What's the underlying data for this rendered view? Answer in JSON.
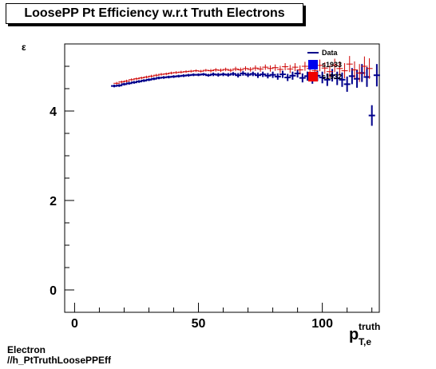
{
  "title": "LoosePP Pt Efficiency w.r.t Truth Electrons",
  "footer": {
    "line1": "Electron",
    "line2": "//h_PtTruthLoosePPEff"
  },
  "chart_data": {
    "type": "scatter",
    "title": "LoosePP Pt Efficiency w.r.t Truth Electrons",
    "ylabel": "ε",
    "xlabel_main": "p",
    "xlabel_sup": "truth",
    "xlabel_sub": "T,e",
    "xlim": [
      -4,
      123
    ],
    "ylim": [
      -0.5,
      5.5
    ],
    "xticks": [
      0,
      50,
      100
    ],
    "yticks": [
      0,
      2,
      4
    ],
    "grid": false,
    "legend_position": "top-right",
    "series": [
      {
        "name": "s1933",
        "color": "#00008b",
        "x": [
          16,
          18,
          20,
          22,
          24,
          26,
          28,
          30,
          32,
          34,
          36,
          38,
          40,
          42,
          44,
          46,
          48,
          50,
          52,
          54,
          56,
          58,
          60,
          62,
          64,
          66,
          68,
          70,
          72,
          74,
          76,
          78,
          80,
          82,
          84,
          86,
          88,
          90,
          92,
          94,
          96,
          98,
          100,
          102,
          104,
          106,
          108,
          110,
          112,
          114,
          116,
          118,
          120,
          122
        ],
        "y": [
          4.56,
          4.57,
          4.6,
          4.62,
          4.64,
          4.66,
          4.68,
          4.7,
          4.72,
          4.74,
          4.75,
          4.76,
          4.77,
          4.78,
          4.79,
          4.8,
          4.81,
          4.81,
          4.82,
          4.8,
          4.82,
          4.81,
          4.82,
          4.81,
          4.83,
          4.8,
          4.84,
          4.81,
          4.83,
          4.8,
          4.82,
          4.79,
          4.81,
          4.77,
          4.82,
          4.75,
          4.79,
          4.84,
          4.74,
          4.78,
          4.72,
          4.79,
          4.75,
          4.7,
          4.8,
          4.73,
          4.7,
          4.6,
          4.78,
          4.72,
          4.85,
          4.76,
          3.9,
          4.8
        ],
        "yerr": [
          0.03,
          0.03,
          0.03,
          0.03,
          0.03,
          0.03,
          0.03,
          0.03,
          0.03,
          0.03,
          0.03,
          0.03,
          0.03,
          0.03,
          0.03,
          0.03,
          0.03,
          0.03,
          0.03,
          0.03,
          0.04,
          0.04,
          0.04,
          0.04,
          0.04,
          0.05,
          0.05,
          0.05,
          0.05,
          0.06,
          0.06,
          0.06,
          0.07,
          0.07,
          0.08,
          0.08,
          0.09,
          0.09,
          0.1,
          0.1,
          0.11,
          0.12,
          0.13,
          0.14,
          0.14,
          0.15,
          0.16,
          0.17,
          0.18,
          0.2,
          0.2,
          0.22,
          0.23,
          0.25
        ]
      },
      {
        "name": "s1932",
        "color": "#cc0000",
        "x": [
          17,
          19,
          21,
          23,
          25,
          27,
          29,
          31,
          33,
          35,
          37,
          39,
          41,
          43,
          45,
          47,
          49,
          51,
          53,
          55,
          57,
          59,
          61,
          63,
          65,
          67,
          69,
          71,
          73,
          75,
          77,
          79,
          81,
          83,
          85,
          87,
          89,
          91,
          93,
          95,
          97,
          99,
          101,
          103,
          105,
          107,
          109,
          111,
          113,
          115,
          117,
          119
        ],
        "y": [
          4.62,
          4.65,
          4.67,
          4.7,
          4.72,
          4.74,
          4.76,
          4.78,
          4.8,
          4.82,
          4.83,
          4.85,
          4.86,
          4.87,
          4.88,
          4.89,
          4.9,
          4.89,
          4.91,
          4.9,
          4.92,
          4.91,
          4.93,
          4.91,
          4.94,
          4.92,
          4.95,
          4.93,
          4.96,
          4.94,
          4.98,
          4.95,
          4.97,
          4.93,
          4.99,
          4.94,
          4.98,
          4.92,
          5.0,
          4.95,
          4.9,
          5.02,
          4.96,
          4.88,
          5.02,
          4.95,
          4.9,
          5.05,
          4.92,
          4.85,
          5.0,
          4.95
        ],
        "yerr": [
          0.03,
          0.03,
          0.03,
          0.03,
          0.03,
          0.03,
          0.03,
          0.03,
          0.03,
          0.03,
          0.03,
          0.03,
          0.03,
          0.03,
          0.03,
          0.03,
          0.03,
          0.03,
          0.03,
          0.04,
          0.04,
          0.04,
          0.04,
          0.04,
          0.05,
          0.05,
          0.05,
          0.05,
          0.06,
          0.06,
          0.06,
          0.07,
          0.07,
          0.08,
          0.08,
          0.09,
          0.09,
          0.1,
          0.1,
          0.11,
          0.12,
          0.13,
          0.13,
          0.14,
          0.15,
          0.16,
          0.17,
          0.18,
          0.19,
          0.2,
          0.22,
          0.23
        ]
      }
    ],
    "legend": [
      {
        "label": "Data",
        "color": "#00008b",
        "style": "line"
      },
      {
        "label": "s1933",
        "color": "#0000ee",
        "style": "box"
      },
      {
        "label": "s1932",
        "color": "#ee0000",
        "style": "box"
      }
    ]
  }
}
